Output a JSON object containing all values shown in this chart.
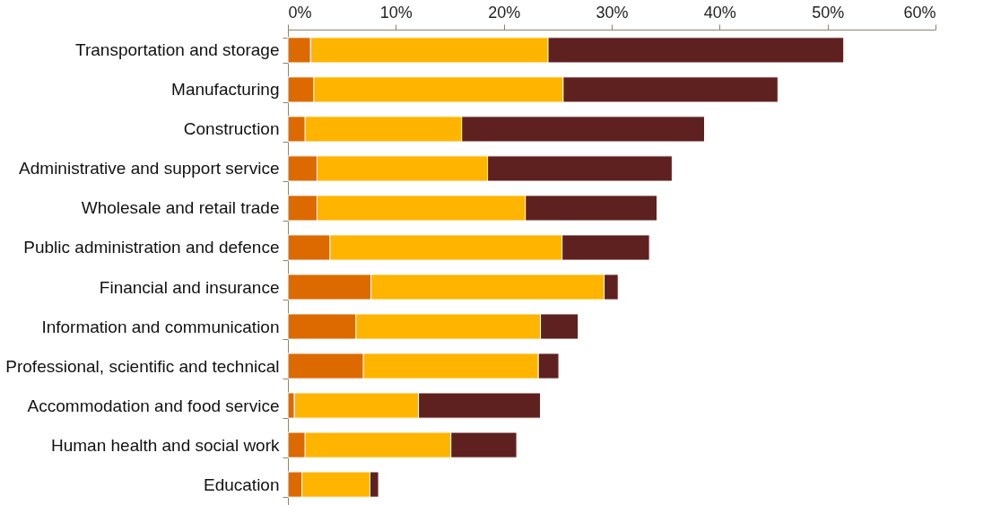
{
  "chart_data": {
    "type": "bar",
    "orientation": "horizontal",
    "stacked": true,
    "grid": false,
    "legend": false,
    "categories": [
      "Transportation and storage",
      "Manufacturing",
      "Construction",
      "Administrative and support service",
      "Wholesale and retail trade",
      "Public administration and defence",
      "Financial and insurance",
      "Information and communication",
      "Professional, scientific and technical",
      "Accommodation and food service",
      "Human health and social work",
      "Education"
    ],
    "series": [
      {
        "color": "#dd6a00",
        "values": [
          2.1,
          2.4,
          1.6,
          2.7,
          2.7,
          3.9,
          7.7,
          6.3,
          7.0,
          0.6,
          1.6,
          1.3
        ]
      },
      {
        "color": "#ffb400",
        "values": [
          22.0,
          23.1,
          14.5,
          15.8,
          19.3,
          21.5,
          21.6,
          17.1,
          16.2,
          11.5,
          13.5,
          6.3
        ]
      },
      {
        "color": "#5e2120",
        "values": [
          27.4,
          19.9,
          22.5,
          17.1,
          12.2,
          8.1,
          1.3,
          3.5,
          1.9,
          11.3,
          6.1,
          0.8
        ]
      }
    ],
    "xlim": [
      0,
      60
    ],
    "xticks": [
      {
        "value": 0,
        "label": "0%"
      },
      {
        "value": 10,
        "label": "10%"
      },
      {
        "value": 20,
        "label": "20%"
      },
      {
        "value": 30,
        "label": "30%"
      },
      {
        "value": 40,
        "label": "40%"
      },
      {
        "value": 50,
        "label": "50%"
      },
      {
        "value": 60,
        "label": "60%"
      }
    ]
  }
}
